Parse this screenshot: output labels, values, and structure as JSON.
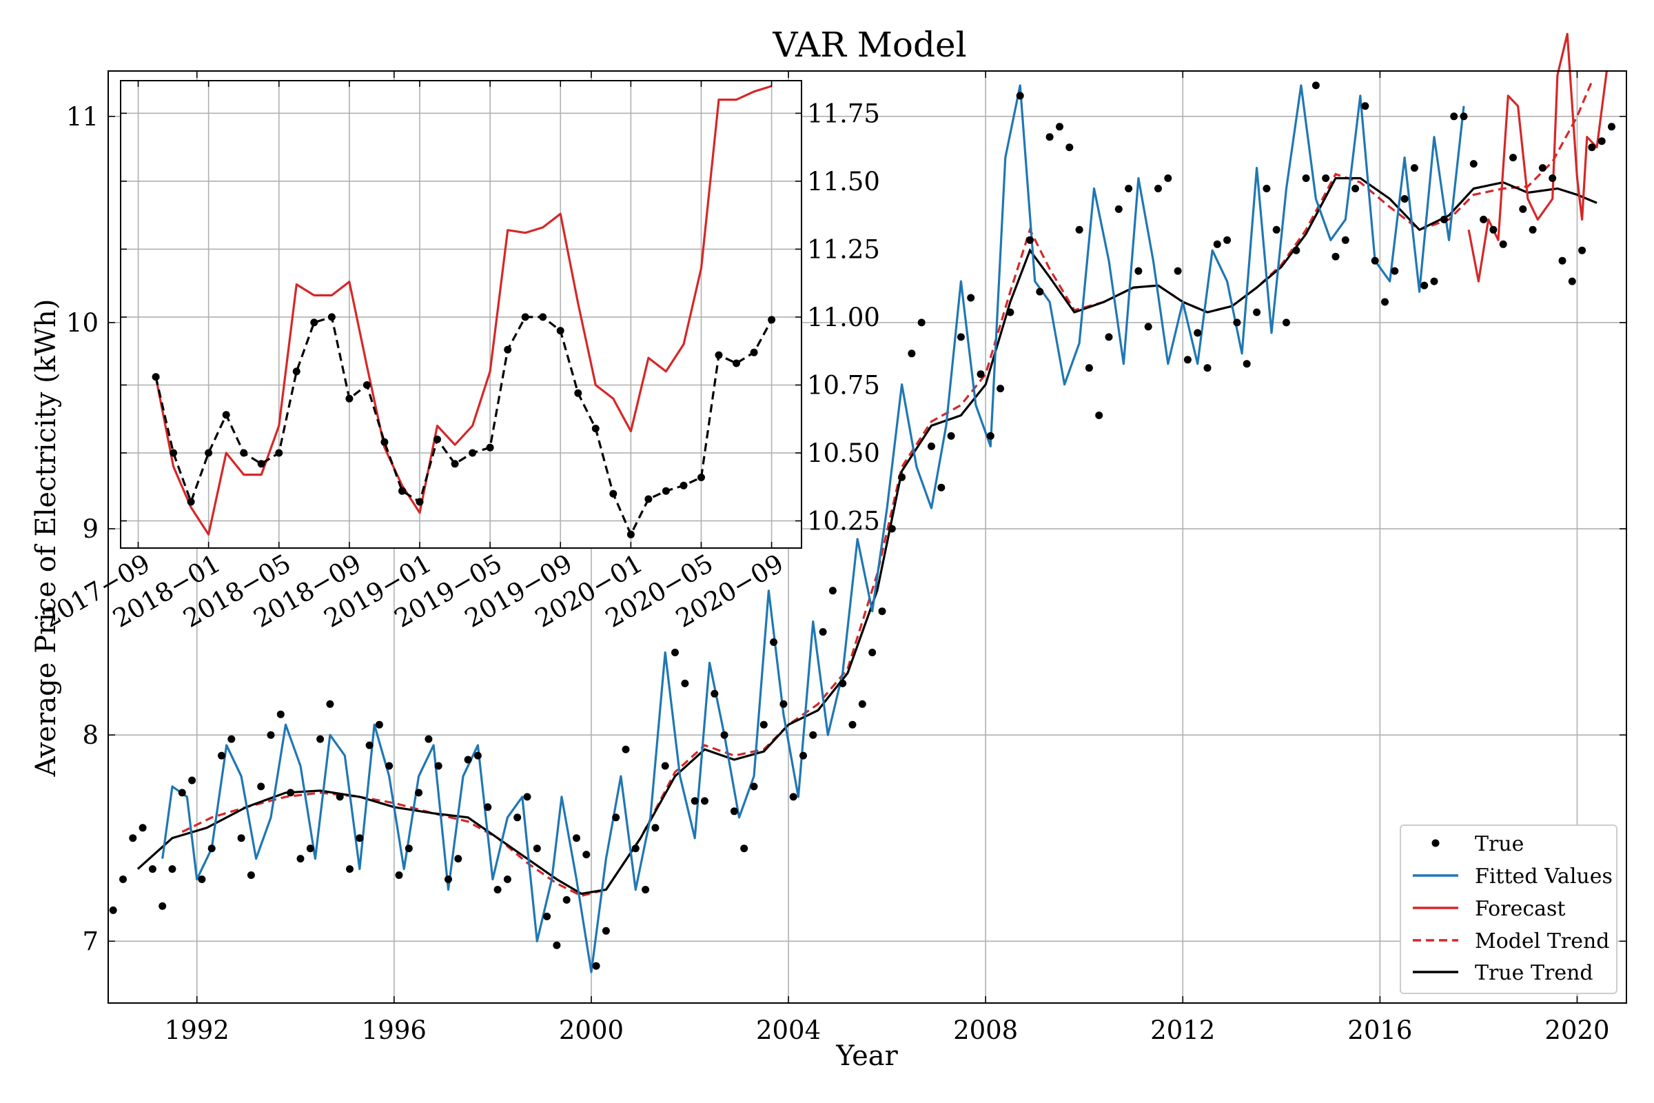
{
  "chart_data": [
    {
      "type": "line",
      "title": "VAR Model",
      "xlabel": "Year",
      "ylabel": "Average Price of Electricity (kWh)",
      "xlim": [
        1990.2,
        2021.0
      ],
      "ylim": [
        6.7,
        11.22
      ],
      "x_ticks": [
        1992,
        1996,
        2000,
        2004,
        2008,
        2012,
        2016,
        2020
      ],
      "y_ticks": [
        7,
        8,
        9,
        10,
        11
      ],
      "grid": true,
      "legend_position": "lower-right",
      "legend": [
        {
          "key": "true",
          "label": "True",
          "color": "#000000",
          "style": "marker"
        },
        {
          "key": "fitted",
          "label": "Fitted Values",
          "color": "#1f77b4",
          "style": "solid"
        },
        {
          "key": "forecast",
          "label": "Forecast",
          "color": "#d62728",
          "style": "solid"
        },
        {
          "key": "model_trend",
          "label": "Model Trend",
          "color": "#d62728",
          "style": "dashed"
        },
        {
          "key": "true_trend",
          "label": "True Trend",
          "color": "#000000",
          "style": "solid"
        }
      ],
      "series": [
        {
          "key": "true_trend",
          "name": "True Trend",
          "x": [
            1990.8,
            1991.5,
            1992.2,
            1993.0,
            1993.8,
            1994.5,
            1995.3,
            1996.0,
            1996.8,
            1997.5,
            1998.1,
            1998.7,
            1999.3,
            1999.8,
            2000.3,
            2001.0,
            2001.7,
            2002.3,
            2002.9,
            2003.5,
            2004.0,
            2004.6,
            2005.2,
            2005.8,
            2006.3,
            2006.9,
            2007.5,
            2008.0,
            2008.5,
            2008.9,
            2009.3,
            2009.8,
            2010.4,
            2011.0,
            2011.5,
            2012.0,
            2012.5,
            2013.0,
            2013.5,
            2014.0,
            2014.5,
            2015.1,
            2015.6,
            2016.2,
            2016.8,
            2017.4,
            2017.9,
            2018.5,
            2019.0,
            2019.6,
            2020.0,
            2020.4
          ],
          "values": [
            7.35,
            7.5,
            7.55,
            7.65,
            7.72,
            7.73,
            7.7,
            7.65,
            7.62,
            7.6,
            7.5,
            7.4,
            7.3,
            7.23,
            7.25,
            7.5,
            7.8,
            7.93,
            7.88,
            7.92,
            8.05,
            8.12,
            8.3,
            8.7,
            9.28,
            9.5,
            9.55,
            9.7,
            10.1,
            10.35,
            10.22,
            10.05,
            10.1,
            10.17,
            10.18,
            10.1,
            10.05,
            10.08,
            10.17,
            10.27,
            10.43,
            10.7,
            10.7,
            10.6,
            10.45,
            10.52,
            10.65,
            10.68,
            10.63,
            10.65,
            10.62,
            10.58
          ]
        },
        {
          "key": "model_trend",
          "name": "Model Trend",
          "x": [
            1991.7,
            1992.3,
            1993.0,
            1993.8,
            1994.5,
            1995.3,
            1996.0,
            1996.8,
            1997.5,
            1998.1,
            1998.7,
            1999.3,
            1999.8,
            2000.3,
            2001.0,
            2001.7,
            2002.3,
            2002.9,
            2003.5,
            2004.0,
            2004.6,
            2005.2,
            2005.8,
            2006.3,
            2006.9,
            2007.5,
            2008.0,
            2008.5,
            2008.9,
            2009.3,
            2009.8,
            2010.4,
            2011.0,
            2011.5,
            2012.0,
            2012.5,
            2013.0,
            2013.5,
            2014.0,
            2014.5,
            2015.1,
            2015.6,
            2016.2,
            2016.8,
            2017.4,
            2017.9,
            2018.5,
            2019.0,
            2019.5,
            2020.0,
            2020.3
          ],
          "values": [
            7.53,
            7.6,
            7.65,
            7.7,
            7.72,
            7.7,
            7.67,
            7.62,
            7.58,
            7.5,
            7.38,
            7.28,
            7.22,
            7.25,
            7.5,
            7.82,
            7.95,
            7.9,
            7.93,
            8.05,
            8.15,
            8.32,
            8.78,
            9.3,
            9.52,
            9.6,
            9.75,
            10.15,
            10.45,
            10.26,
            10.06,
            10.1,
            10.17,
            10.18,
            10.1,
            10.05,
            10.08,
            10.17,
            10.28,
            10.45,
            10.72,
            10.68,
            10.56,
            10.45,
            10.5,
            10.62,
            10.65,
            10.66,
            10.78,
            11.0,
            11.17
          ]
        },
        {
          "key": "fitted",
          "name": "Fitted Values",
          "x": [
            1991.3,
            1991.5,
            1991.8,
            1992.0,
            1992.3,
            1992.6,
            1992.9,
            1993.2,
            1993.5,
            1993.8,
            1994.1,
            1994.4,
            1994.7,
            1995.0,
            1995.3,
            1995.6,
            1995.9,
            1996.2,
            1996.5,
            1996.8,
            1997.1,
            1997.4,
            1997.7,
            1998.0,
            1998.3,
            1998.6,
            1998.9,
            1999.2,
            1999.4,
            1999.7,
            2000.0,
            2000.3,
            2000.6,
            2000.9,
            2001.2,
            2001.5,
            2001.8,
            2002.1,
            2002.4,
            2002.7,
            2003.0,
            2003.3,
            2003.6,
            2003.9,
            2004.2,
            2004.5,
            2004.8,
            2005.1,
            2005.4,
            2005.7,
            2006.0,
            2006.3,
            2006.6,
            2006.9,
            2007.2,
            2007.5,
            2007.8,
            2008.1,
            2008.4,
            2008.7,
            2009.0,
            2009.3,
            2009.6,
            2009.9,
            2010.2,
            2010.5,
            2010.8,
            2011.1,
            2011.4,
            2011.7,
            2012.0,
            2012.3,
            2012.6,
            2012.9,
            2013.2,
            2013.5,
            2013.8,
            2014.1,
            2014.4,
            2014.7,
            2015.0,
            2015.3,
            2015.6,
            2015.9,
            2016.2,
            2016.5,
            2016.8,
            2017.1,
            2017.4,
            2017.7
          ],
          "values": [
            7.4,
            7.75,
            7.7,
            7.3,
            7.45,
            7.95,
            7.8,
            7.4,
            7.6,
            8.05,
            7.85,
            7.4,
            8.0,
            7.9,
            7.35,
            8.05,
            7.8,
            7.35,
            7.8,
            7.95,
            7.25,
            7.8,
            7.95,
            7.3,
            7.6,
            7.7,
            7.0,
            7.3,
            7.7,
            7.3,
            6.85,
            7.4,
            7.8,
            7.25,
            7.6,
            8.4,
            7.8,
            7.5,
            8.35,
            8.0,
            7.6,
            7.8,
            8.7,
            8.1,
            7.7,
            8.55,
            8.0,
            8.3,
            8.95,
            8.6,
            9.1,
            9.7,
            9.3,
            9.1,
            9.5,
            10.2,
            9.6,
            9.4,
            10.8,
            11.15,
            10.2,
            10.1,
            9.7,
            9.9,
            10.65,
            10.3,
            9.8,
            10.7,
            10.3,
            9.8,
            10.1,
            9.8,
            10.35,
            10.2,
            9.85,
            10.75,
            9.95,
            10.65,
            11.15,
            10.6,
            10.4,
            10.5,
            11.1,
            10.3,
            10.2,
            10.8,
            10.15,
            10.9,
            10.4,
            11.05
          ]
        },
        {
          "key": "forecast",
          "name": "Forecast",
          "x": [
            2017.8,
            2018.0,
            2018.2,
            2018.4,
            2018.6,
            2018.8,
            2019.0,
            2019.2,
            2019.5,
            2019.6,
            2019.8,
            2020.0,
            2020.1,
            2020.2,
            2020.4,
            2020.6
          ],
          "values": [
            10.45,
            10.2,
            10.5,
            10.4,
            11.1,
            11.05,
            10.6,
            10.5,
            10.6,
            11.2,
            11.4,
            10.7,
            10.5,
            10.9,
            10.85,
            11.22
          ]
        },
        {
          "key": "true",
          "name": "True",
          "x": [
            1990.3,
            1990.5,
            1990.7,
            1990.9,
            1991.1,
            1991.3,
            1991.5,
            1991.7,
            1991.9,
            1992.1,
            1992.3,
            1992.5,
            1992.7,
            1992.9,
            1993.1,
            1993.3,
            1993.5,
            1993.7,
            1993.9,
            1994.1,
            1994.3,
            1994.5,
            1994.7,
            1994.9,
            1995.1,
            1995.3,
            1995.5,
            1995.7,
            1995.9,
            1996.1,
            1996.3,
            1996.5,
            1996.7,
            1996.9,
            1997.1,
            1997.3,
            1997.5,
            1997.7,
            1997.9,
            1998.1,
            1998.3,
            1998.5,
            1998.7,
            1998.9,
            1999.1,
            1999.3,
            1999.5,
            1999.7,
            1999.9,
            2000.1,
            2000.3,
            2000.5,
            2000.7,
            2000.9,
            2001.1,
            2001.3,
            2001.5,
            2001.7,
            2001.9,
            2002.1,
            2002.3,
            2002.5,
            2002.7,
            2002.9,
            2003.1,
            2003.3,
            2003.5,
            2003.7,
            2003.9,
            2004.1,
            2004.3,
            2004.5,
            2004.7,
            2004.9,
            2005.1,
            2005.3,
            2005.5,
            2005.7,
            2005.9,
            2006.1,
            2006.3,
            2006.5,
            2006.7,
            2006.9,
            2007.1,
            2007.3,
            2007.5,
            2007.7,
            2007.9,
            2008.1,
            2008.3,
            2008.5,
            2008.7,
            2008.9,
            2009.1,
            2009.3,
            2009.5,
            2009.7,
            2009.9,
            2010.1,
            2010.3,
            2010.5,
            2010.7,
            2010.9,
            2011.1,
            2011.3,
            2011.5,
            2011.7,
            2011.9,
            2012.1,
            2012.3,
            2012.5,
            2012.7,
            2012.9,
            2013.1,
            2013.3,
            2013.5,
            2013.7,
            2013.9,
            2014.1,
            2014.3,
            2014.5,
            2014.7,
            2014.9,
            2015.1,
            2015.3,
            2015.5,
            2015.7,
            2015.9,
            2016.1,
            2016.3,
            2016.5,
            2016.7,
            2016.9,
            2017.1,
            2017.3,
            2017.5,
            2017.7,
            2017.9,
            2018.1,
            2018.3,
            2018.5,
            2018.7,
            2018.9,
            2019.1,
            2019.3,
            2019.5,
            2019.7,
            2019.9,
            2020.1,
            2020.3,
            2020.5,
            2020.7
          ],
          "values": [
            7.15,
            7.3,
            7.5,
            7.55,
            7.35,
            7.17,
            7.35,
            7.72,
            7.78,
            7.3,
            7.45,
            7.9,
            7.98,
            7.5,
            7.32,
            7.75,
            8.0,
            8.1,
            7.72,
            7.4,
            7.45,
            7.98,
            8.15,
            7.7,
            7.35,
            7.5,
            7.95,
            8.05,
            7.85,
            7.32,
            7.45,
            7.72,
            7.98,
            7.85,
            7.3,
            7.4,
            7.88,
            7.9,
            7.65,
            7.25,
            7.3,
            7.6,
            7.7,
            7.45,
            7.12,
            6.98,
            7.2,
            7.5,
            7.42,
            6.88,
            7.05,
            7.6,
            7.93,
            7.45,
            7.25,
            7.55,
            7.85,
            8.4,
            8.25,
            7.68,
            7.68,
            8.2,
            8.0,
            7.63,
            7.45,
            7.75,
            8.05,
            8.45,
            8.15,
            7.7,
            7.9,
            8.0,
            8.5,
            8.7,
            8.25,
            8.05,
            8.15,
            8.4,
            8.6,
            9.0,
            9.25,
            9.85,
            10.0,
            9.4,
            9.2,
            9.45,
            9.93,
            10.12,
            9.75,
            9.45,
            9.68,
            10.05,
            11.1,
            10.4,
            10.15,
            10.9,
            10.95,
            10.85,
            10.45,
            9.78,
            9.55,
            9.93,
            10.55,
            10.65,
            10.25,
            9.98,
            10.65,
            10.7,
            10.25,
            9.82,
            9.95,
            9.78,
            10.38,
            10.4,
            10.0,
            9.8,
            10.05,
            10.65,
            10.45,
            10.0,
            10.35,
            10.7,
            11.15,
            10.7,
            10.32,
            10.4,
            10.65,
            11.05,
            10.3,
            10.1,
            10.25,
            10.6,
            10.75,
            10.18,
            10.2,
            10.5,
            11.0,
            11.0,
            10.77,
            10.5,
            10.45,
            10.38,
            10.8,
            10.55,
            10.45,
            10.75,
            10.7,
            10.3,
            10.2,
            10.35,
            10.85,
            10.88,
            10.95
          ]
        }
      ],
      "inset": {
        "type": "line",
        "x_ticks": [
          "2017−09",
          "2018−01",
          "2018−05",
          "2018−09",
          "2019−01",
          "2019−05",
          "2019−09",
          "2020−01",
          "2020−05",
          "2020−09"
        ],
        "y_ticks": [
          "10.25",
          "10.50",
          "10.75",
          "11.00",
          "11.25",
          "11.50",
          "11.75"
        ],
        "y_tick_values": [
          10.25,
          10.5,
          10.75,
          11.0,
          11.25,
          11.5,
          11.75
        ],
        "y_axis_side": "right",
        "ylim": [
          10.15,
          11.87
        ],
        "x_month_index_range": [
          -1.0,
          37.7
        ],
        "grid": true,
        "series": [
          {
            "key": "forecast",
            "name": "Forecast",
            "color": "#d62728",
            "style": "solid",
            "x": [
              1,
              2,
              3,
              4,
              5,
              6,
              7,
              8,
              9,
              10,
              11,
              12,
              13,
              14,
              15,
              16,
              17,
              18,
              19,
              20,
              21,
              22,
              23,
              24,
              25,
              26,
              27,
              28,
              29,
              30,
              31,
              32,
              33,
              34,
              35,
              36
            ],
            "values": [
              10.78,
              10.45,
              10.3,
              10.2,
              10.5,
              10.42,
              10.42,
              10.6,
              11.12,
              11.08,
              11.08,
              11.13,
              10.82,
              10.52,
              10.38,
              10.28,
              10.6,
              10.53,
              10.6,
              10.8,
              11.32,
              11.31,
              11.33,
              11.38,
              11.05,
              10.75,
              10.7,
              10.58,
              10.85,
              10.8,
              10.9,
              11.18,
              11.8,
              11.8,
              11.83,
              11.85
            ]
          },
          {
            "key": "true",
            "name": "True",
            "color": "#000000",
            "style": "dashed-markers",
            "x": [
              1,
              2,
              3,
              4,
              5,
              6,
              7,
              8,
              9,
              10,
              11,
              12,
              13,
              14,
              15,
              16,
              17,
              18,
              19,
              20,
              21,
              22,
              23,
              24,
              25,
              26,
              27,
              28,
              29,
              30,
              31,
              32,
              33,
              34,
              35,
              36
            ],
            "values": [
              10.78,
              10.5,
              10.32,
              10.5,
              10.64,
              10.5,
              10.46,
              10.5,
              10.8,
              10.98,
              11.0,
              10.7,
              10.75,
              10.54,
              10.36,
              10.32,
              10.55,
              10.46,
              10.5,
              10.52,
              10.88,
              11.0,
              11.0,
              10.95,
              10.72,
              10.59,
              10.35,
              10.2,
              10.33,
              10.36,
              10.38,
              10.41,
              10.86,
              10.83,
              10.87,
              10.99
            ]
          }
        ]
      }
    }
  ]
}
